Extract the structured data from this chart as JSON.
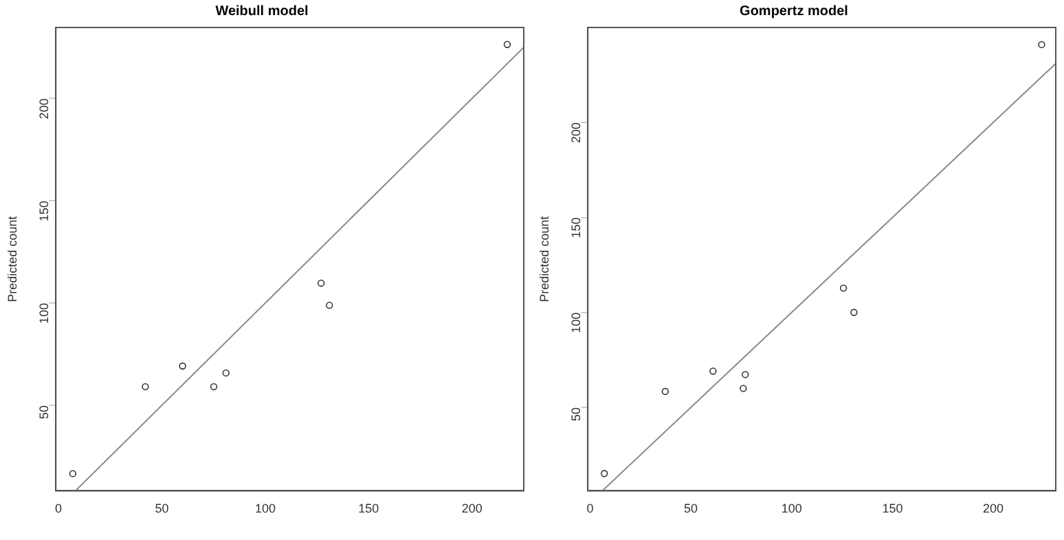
{
  "chart_data": [
    {
      "type": "scatter",
      "title": "Weibull model",
      "ylabel": "Predicted count",
      "marker": "circle",
      "grid": false,
      "legend": false,
      "xlim": [
        -1.3,
        225
      ],
      "xticks": [
        0,
        50,
        100,
        150,
        200
      ],
      "ylim": [
        8.2,
        234.7
      ],
      "yticks": [
        50,
        100,
        150,
        200
      ],
      "series": [
        {
          "type": "scatter",
          "color": "#333333",
          "x": [
            6.9,
            42,
            60,
            75.1,
            81,
            127,
            131,
            217
          ],
          "values": [
            16.6,
            59.1,
            69.2,
            59.1,
            65.8,
            109.7,
            98.9,
            226.4
          ]
        },
        {
          "type": "line",
          "color": "#888888",
          "marker": "none",
          "x": [
            8.2,
            225
          ],
          "values": [
            8.2,
            225
          ]
        }
      ]
    },
    {
      "type": "scatter",
      "title": "Gompertz model",
      "ylabel": "Predicted count",
      "marker": "circle",
      "grid": false,
      "legend": false,
      "xlim": [
        -1.1,
        231
      ],
      "xticks": [
        0,
        50,
        100,
        150,
        200
      ],
      "ylim": [
        6.1,
        250
      ],
      "yticks": [
        50,
        100,
        150,
        200
      ],
      "series": [
        {
          "type": "scatter",
          "color": "#333333",
          "x": [
            7.1,
            37.3,
            61,
            76,
            77,
            125.7,
            130.9,
            224
          ],
          "values": [
            15.2,
            58.4,
            69.1,
            60,
            67.3,
            112.8,
            100,
            241
          ]
        },
        {
          "type": "line",
          "color": "#888888",
          "marker": "none",
          "x": [
            6.1,
            231
          ],
          "values": [
            6.1,
            231
          ]
        }
      ]
    }
  ]
}
